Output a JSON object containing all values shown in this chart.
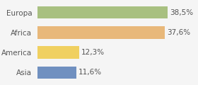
{
  "categories": [
    "Asia",
    "America",
    "Africa",
    "Europa"
  ],
  "values": [
    11.6,
    12.3,
    37.6,
    38.5
  ],
  "labels": [
    "11,6%",
    "12,3%",
    "37,6%",
    "38,5%"
  ],
  "bar_colors": [
    "#7090c0",
    "#f0d060",
    "#e8b87a",
    "#a8c080"
  ],
  "background_color": "#f5f5f5",
  "xlim": [
    0,
    47
  ],
  "bar_height": 0.62,
  "label_fontsize": 7.5,
  "category_fontsize": 7.5
}
